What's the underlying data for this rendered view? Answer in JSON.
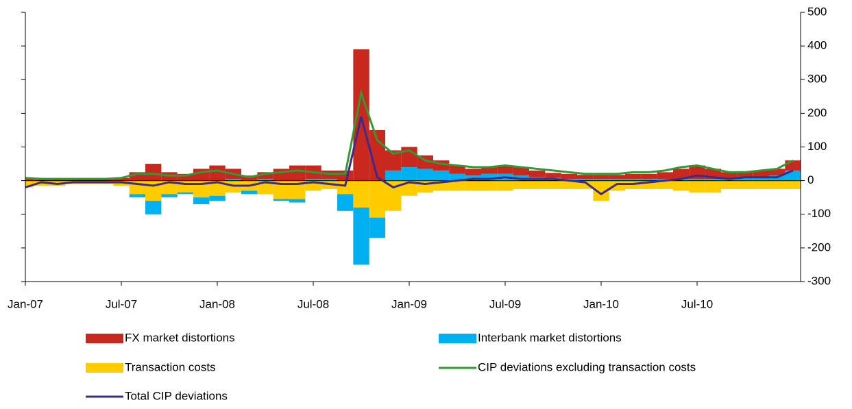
{
  "chart_data": {
    "type": "stacked_bar_line",
    "categories": [
      "Jan-07",
      null,
      null,
      null,
      null,
      null,
      "Jul-07",
      null,
      null,
      null,
      null,
      null,
      "Jan-08",
      null,
      null,
      null,
      null,
      null,
      "Jul-08",
      null,
      null,
      null,
      null,
      null,
      "Jan-09",
      null,
      null,
      null,
      null,
      null,
      "Jul-09",
      null,
      null,
      null,
      null,
      null,
      "Jan-10",
      null,
      null,
      null,
      null,
      null,
      "Jul-10",
      null,
      null,
      null,
      null,
      null,
      null
    ],
    "series": [
      {
        "name": "FX market distortions",
        "color": "#c8281e",
        "kind": "bar",
        "values": [
          5,
          3,
          3,
          3,
          3,
          5,
          8,
          25,
          50,
          25,
          20,
          35,
          45,
          30,
          15,
          20,
          35,
          45,
          40,
          25,
          30,
          390,
          150,
          60,
          60,
          40,
          30,
          25,
          20,
          20,
          25,
          25,
          20,
          15,
          15,
          12,
          12,
          12,
          15,
          15,
          20,
          30,
          40,
          30,
          20,
          20,
          20,
          20,
          30
        ]
      },
      {
        "name": "Interbank market distortions",
        "color": "#00b0f0",
        "kind": "bar",
        "values": [
          0,
          0,
          0,
          0,
          0,
          0,
          0,
          -10,
          -40,
          -10,
          -5,
          -20,
          -15,
          5,
          -10,
          5,
          -5,
          -10,
          5,
          5,
          -50,
          -170,
          -60,
          30,
          40,
          35,
          30,
          20,
          15,
          20,
          20,
          15,
          10,
          8,
          5,
          5,
          5,
          5,
          5,
          5,
          5,
          5,
          5,
          5,
          5,
          8,
          10,
          15,
          30
        ]
      },
      {
        "name": "Transaction costs",
        "color": "#ffcc00",
        "kind": "bar",
        "values": [
          -20,
          -15,
          -15,
          -10,
          -10,
          -10,
          -15,
          -40,
          -60,
          -40,
          -35,
          -50,
          -45,
          -35,
          -30,
          -40,
          -55,
          -55,
          -30,
          -25,
          -40,
          -80,
          -110,
          -90,
          -45,
          -35,
          -30,
          -30,
          -30,
          -30,
          -30,
          -25,
          -25,
          -25,
          -25,
          -25,
          -60,
          -30,
          -25,
          -25,
          -25,
          -30,
          -35,
          -35,
          -25,
          -25,
          -25,
          -25,
          -25
        ]
      },
      {
        "name": "CIP deviations excluding transaction costs",
        "color": "#339933",
        "kind": "line",
        "values": [
          8,
          5,
          5,
          5,
          5,
          5,
          8,
          20,
          20,
          15,
          15,
          25,
          30,
          20,
          10,
          20,
          25,
          30,
          25,
          20,
          20,
          260,
          120,
          80,
          90,
          60,
          50,
          45,
          40,
          40,
          45,
          40,
          35,
          30,
          25,
          20,
          20,
          20,
          25,
          25,
          30,
          40,
          45,
          35,
          25,
          25,
          30,
          35,
          60
        ]
      },
      {
        "name": "Total CIP deviations",
        "color": "#3d2a8a",
        "kind": "line",
        "values": [
          -20,
          -5,
          -10,
          -5,
          -5,
          -5,
          -5,
          -10,
          -15,
          -5,
          -10,
          -10,
          -5,
          -15,
          -15,
          -5,
          -10,
          -10,
          -5,
          -10,
          -15,
          190,
          10,
          -20,
          -5,
          -10,
          -5,
          0,
          5,
          5,
          10,
          5,
          5,
          5,
          0,
          -5,
          -40,
          -10,
          -10,
          -5,
          0,
          5,
          15,
          10,
          5,
          10,
          10,
          10,
          30
        ]
      }
    ],
    "ylim": [
      -300,
      500
    ],
    "yticks": [
      -300,
      -200,
      -100,
      0,
      100,
      200,
      300,
      400,
      500
    ]
  }
}
